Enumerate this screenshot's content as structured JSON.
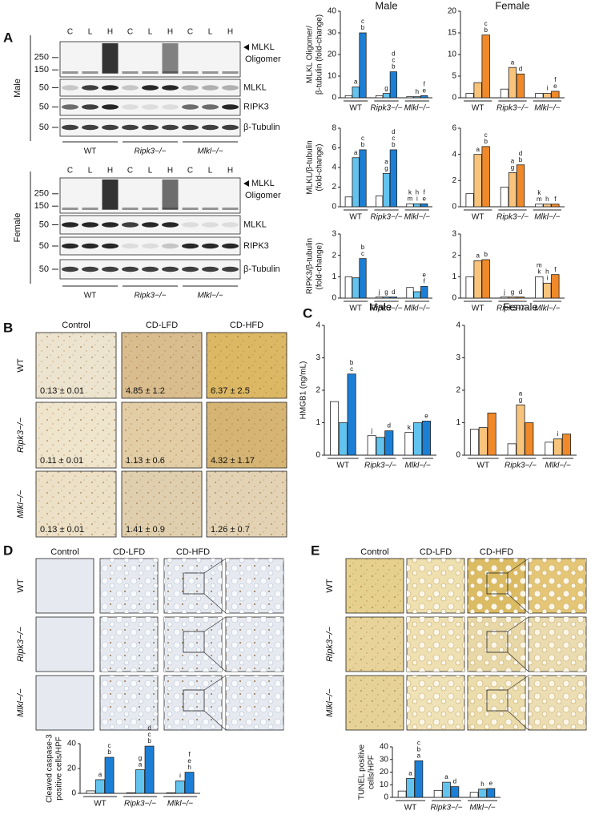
{
  "panel_labels": [
    "A",
    "B",
    "C",
    "D",
    "E"
  ],
  "blots": {
    "lanes": [
      "C",
      "L",
      "H",
      "C",
      "L",
      "H",
      "C",
      "L",
      "H"
    ],
    "genotypes": [
      "WT",
      "Ripk3−/−",
      "Mlkl−/−"
    ],
    "gels": [
      {
        "sex": "Male",
        "rows": [
          {
            "markers": [
              250,
              150
            ],
            "label": [
              "MLKL",
              "Oligomer"
            ]
          },
          {
            "markers": [
              50
            ],
            "label": [
              "MLKL"
            ]
          },
          {
            "markers": [
              50
            ],
            "label": [
              "RIPK3"
            ]
          },
          {
            "markers": [
              50
            ],
            "label": [
              "β-Tubulin"
            ]
          }
        ]
      },
      {
        "sex": "Female",
        "rows": [
          {
            "markers": [
              250,
              150
            ],
            "label": [
              "MLKL",
              "Oligomer"
            ]
          },
          {
            "markers": [
              50
            ],
            "label": [
              "MLKL"
            ]
          },
          {
            "markers": [
              50
            ],
            "label": [
              "RIPK3"
            ]
          },
          {
            "markers": [
              50
            ],
            "label": [
              "β-Tubulin"
            ]
          }
        ]
      }
    ]
  },
  "micrographs": {
    "B": {
      "columns": [
        "Control",
        "CD-LFD",
        "CD-HFD"
      ],
      "rows": [
        "WT",
        "Ripk3−/−",
        "Mlkl−/−"
      ],
      "values": [
        [
          "0.13 ± 0.01",
          "4.85 ± 1.2",
          "6.37 ± 2.5"
        ],
        [
          "0.11 ± 0.01",
          "1.13 ± 0.6",
          "4.32 ± 1.17"
        ],
        [
          "0.13 ± 0.01",
          "1.41 ± 0.9",
          "1.26 ± 0.7"
        ]
      ]
    },
    "D": {
      "columns": [
        "Control",
        "CD-LFD",
        "CD-HFD"
      ],
      "rows": [
        "WT",
        "Ripk3−/−",
        "Mlkl−/−"
      ]
    },
    "E": {
      "columns": [
        "Control",
        "CD-LFD",
        "CD-HFD"
      ],
      "rows": [
        "WT",
        "Ripk3−/−",
        "Mlkl−/−"
      ]
    }
  },
  "chart_data": [
    {
      "type": "bar",
      "title": "Male",
      "ylabel": [
        "MLKL Oligomer/",
        "β-tubulin (fold-change)"
      ],
      "categories": [
        "WT",
        "Ripk3−/−",
        "Mlkl−/−"
      ],
      "ylim": [
        0,
        40
      ],
      "yticks": [
        0,
        10,
        20,
        30,
        40
      ],
      "series": [
        {
          "color": "#ffffff",
          "values": [
            1,
            1,
            0.5
          ]
        },
        {
          "color": "#62c3ee",
          "values": [
            5,
            2,
            0.5
          ],
          "letters": [
            [
              "a"
            ],
            [
              "g"
            ],
            [
              "h"
            ]
          ]
        },
        {
          "color": "#1c7fd6",
          "values": [
            30,
            12,
            1
          ],
          "letters": [
            [
              "c",
              "b"
            ],
            [
              "d",
              "c",
              "b"
            ],
            [
              "f",
              "e"
            ]
          ]
        }
      ]
    },
    {
      "type": "bar",
      "title": "Female",
      "categories": [
        "WT",
        "Ripk3−/−",
        "Mlkl−/−"
      ],
      "ylim": [
        0,
        20
      ],
      "yticks": [
        0,
        5,
        10,
        15,
        20
      ],
      "series": [
        {
          "color": "#ffffff",
          "values": [
            1,
            2,
            1
          ]
        },
        {
          "color": "#f8c47c",
          "values": [
            3.5,
            7,
            1
          ],
          "letters": [
            null,
            [
              "a"
            ],
            [
              "i"
            ]
          ]
        },
        {
          "color": "#f0892a",
          "values": [
            14.5,
            5.5,
            1.5
          ],
          "letters": [
            [
              "c",
              "b"
            ],
            [
              "d"
            ],
            [
              "f",
              "e"
            ]
          ]
        }
      ]
    },
    {
      "type": "bar",
      "ylabel": [
        "MLKL/β-tubulin",
        "(fold-change)"
      ],
      "categories": [
        "WT",
        "Ripk3−/−",
        "Mlkl−/−"
      ],
      "ylim": [
        0,
        8
      ],
      "yticks": [
        0,
        2,
        4,
        6,
        8
      ],
      "series": [
        {
          "color": "#ffffff",
          "values": [
            1,
            1.1,
            0.3
          ],
          "letters": [
            null,
            null,
            [
              "k",
              "m"
            ]
          ]
        },
        {
          "color": "#62c3ee",
          "values": [
            5,
            3.4,
            0.3
          ],
          "letters": [
            [
              "a"
            ],
            [
              "a",
              "g"
            ],
            [
              "h",
              "i"
            ]
          ]
        },
        {
          "color": "#1c7fd6",
          "values": [
            5.8,
            5.8,
            0.3
          ],
          "letters": [
            [
              "c",
              "b"
            ],
            [
              "d",
              "c",
              "b"
            ],
            [
              "f",
              "e"
            ]
          ]
        }
      ]
    },
    {
      "type": "bar",
      "categories": [
        "WT",
        "Ripk3−/−",
        "Mlkl−/−"
      ],
      "ylim": [
        0,
        6
      ],
      "yticks": [
        0,
        2,
        4,
        6
      ],
      "series": [
        {
          "color": "#ffffff",
          "values": [
            1,
            1.5,
            0.2
          ],
          "letters": [
            null,
            null,
            [
              "k",
              "m"
            ]
          ]
        },
        {
          "color": "#f8c47c",
          "values": [
            4,
            2.6,
            0.2
          ],
          "letters": [
            [
              "a"
            ],
            [
              "a",
              "g"
            ],
            [
              "h"
            ]
          ]
        },
        {
          "color": "#f0892a",
          "values": [
            4.6,
            3.2,
            0.2
          ],
          "letters": [
            [
              "c",
              "b"
            ],
            [
              "d",
              "b"
            ],
            [
              "f"
            ]
          ]
        }
      ]
    },
    {
      "type": "bar",
      "ylabel": [
        "RIPK3/β-tubulin",
        "(fold-change)"
      ],
      "categories": [
        "WT",
        "Ripk3−/−",
        "Mlkl−/−"
      ],
      "ylim": [
        0,
        3
      ],
      "yticks": [
        0,
        1,
        2,
        3
      ],
      "series": [
        {
          "color": "#ffffff",
          "values": [
            1,
            0.05,
            0.5
          ],
          "letters": [
            null,
            [
              "j"
            ],
            null
          ]
        },
        {
          "color": "#62c3ee",
          "values": [
            0.95,
            0.05,
            0.3
          ],
          "letters": [
            null,
            [
              "g"
            ],
            null
          ]
        },
        {
          "color": "#1c7fd6",
          "values": [
            1.85,
            0.05,
            0.55
          ],
          "letters": [
            [
              "b",
              "c"
            ],
            [
              "d"
            ],
            [
              "e",
              "f"
            ]
          ]
        }
      ]
    },
    {
      "type": "bar",
      "categories": [
        "WT",
        "Ripk3−/−",
        "Mlkl−/−"
      ],
      "ylim": [
        0,
        3
      ],
      "yticks": [
        0,
        1,
        2,
        3
      ],
      "series": [
        {
          "color": "#ffffff",
          "values": [
            1,
            0.05,
            1
          ],
          "letters": [
            null,
            [
              "j"
            ],
            [
              "m",
              "k"
            ]
          ]
        },
        {
          "color": "#f8c47c",
          "values": [
            1.75,
            0.05,
            0.7
          ],
          "letters": [
            [
              "a"
            ],
            [
              "g"
            ],
            [
              "h",
              "i"
            ]
          ]
        },
        {
          "color": "#f0892a",
          "values": [
            1.8,
            0.05,
            1.1
          ],
          "letters": [
            [
              "b"
            ],
            [
              "d"
            ],
            [
              "f"
            ]
          ]
        }
      ]
    },
    {
      "type": "bar",
      "title": "Male",
      "ylabel": [
        "HMGB1 (ng/mL)"
      ],
      "categories": [
        "WT",
        "Ripk3−/−",
        "Mlkl−/−"
      ],
      "ylim": [
        0,
        4
      ],
      "yticks": [
        0,
        1,
        2,
        3,
        4
      ],
      "series": [
        {
          "color": "#ffffff",
          "values": [
            1.65,
            0.6,
            0.7
          ],
          "letters": [
            null,
            [
              "j"
            ],
            [
              "k"
            ]
          ]
        },
        {
          "color": "#62c3ee",
          "values": [
            1,
            0.55,
            1
          ]
        },
        {
          "color": "#1c7fd6",
          "values": [
            2.5,
            0.75,
            1.05
          ],
          "letters": [
            [
              "b",
              "c"
            ],
            [
              "d"
            ],
            [
              "e"
            ]
          ]
        }
      ]
    },
    {
      "type": "bar",
      "title": "Female",
      "categories": [
        "WT",
        "Ripk3−/−",
        "Mlkl−/−"
      ],
      "ylim": [
        0,
        4
      ],
      "yticks": [
        0,
        1,
        2,
        3,
        4
      ],
      "series": [
        {
          "color": "#ffffff",
          "values": [
            0.8,
            0.35,
            0.4
          ]
        },
        {
          "color": "#f8c47c",
          "values": [
            0.85,
            1.55,
            0.5
          ],
          "letters": [
            null,
            [
              "a",
              "g"
            ],
            [
              "i"
            ]
          ]
        },
        {
          "color": "#f0892a",
          "values": [
            1.3,
            1,
            0.65
          ]
        }
      ]
    },
    {
      "type": "bar",
      "ylabel": [
        "Cleaved caspase-3",
        "positive cells/HPF"
      ],
      "categories": [
        "WT",
        "Ripk3−/−",
        "Mlkl−/−"
      ],
      "ylim": [
        0,
        40
      ],
      "yticks": [
        0,
        20,
        40
      ],
      "series": [
        {
          "color": "#ffffff",
          "values": [
            2,
            0.5,
            0.5
          ]
        },
        {
          "color": "#62c3ee",
          "values": [
            11,
            19,
            10
          ],
          "letters": [
            [
              "a"
            ],
            [
              "g",
              "a"
            ],
            [
              "i"
            ]
          ]
        },
        {
          "color": "#1c7fd6",
          "values": [
            29,
            38,
            17
          ],
          "letters": [
            [
              "c",
              "b"
            ],
            [
              "d",
              "c",
              "b"
            ],
            [
              "f",
              "e",
              "h"
            ]
          ]
        }
      ]
    },
    {
      "type": "bar",
      "ylabel": [
        "TUNEL positive",
        "cells/HPF"
      ],
      "categories": [
        "WT",
        "Ripk3−/−",
        "Mlkl−/−"
      ],
      "ylim": [
        0,
        40
      ],
      "yticks": [
        0,
        10,
        20,
        30,
        40
      ],
      "series": [
        {
          "color": "#ffffff",
          "values": [
            5,
            5.5,
            4
          ]
        },
        {
          "color": "#62c3ee",
          "values": [
            15,
            12,
            6.5
          ],
          "letters": [
            [
              "a"
            ],
            [
              "a"
            ],
            [
              "h"
            ]
          ]
        },
        {
          "color": "#1c7fd6",
          "values": [
            29,
            8.5,
            7
          ],
          "letters": [
            [
              "c",
              "b",
              "a"
            ],
            [
              "d"
            ],
            [
              "e"
            ]
          ]
        }
      ]
    }
  ]
}
